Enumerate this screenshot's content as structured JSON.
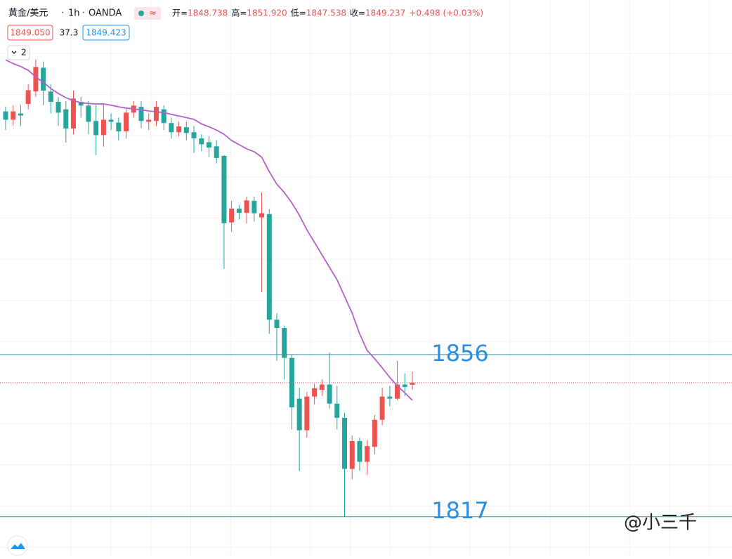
{
  "chart_data": {
    "type": "candlestick",
    "symbol": "黄金/美元",
    "interval": "1h",
    "exchange": "OANDA",
    "legend_values": [
      {
        "label": "开=",
        "value": "1848.738"
      },
      {
        "label": "高=",
        "value": "1851.920"
      },
      {
        "label": "低=",
        "value": "1847.538"
      },
      {
        "label": "收=",
        "value": "1849.237"
      }
    ],
    "change": "+0.498 (+0.03%)",
    "bid": "1849.050",
    "spread": "37.3",
    "ask": "1849.423",
    "indicator_count": "2",
    "watermark": "@小三千",
    "up_color": "#ef5350",
    "down_color": "#26a69a",
    "ylim": [
      1807.5,
      1941.3
    ],
    "grid": true,
    "open": [
      1914.5,
      1912.5,
      1914,
      1916.3,
      1919.3,
      1925,
      1919.3,
      1916.8,
      1915,
      1910.4,
      1916.8,
      1915.9,
      1912.2,
      1908.8,
      1912.5,
      1911.8,
      1909.7,
      1914.2,
      1915.6,
      1912,
      1912.2,
      1915,
      1911.7,
      1909.5,
      1910.7,
      1909.5,
      1908,
      1907.1,
      1906.1,
      1903.8,
      1887.8,
      1891.1,
      1890.1,
      1893,
      1889,
      1889.8,
      1864.4,
      1862.4,
      1855.2,
      1845.4,
      1837.8,
      1845.9,
      1847.5,
      1848.8,
      1844.2,
      1840.8,
      1828.5,
      1835.2,
      1830.2,
      1833.8,
      1840.3,
      1845.9,
      1845.4,
      1848.8,
      1848.738
    ],
    "high": [
      1915.7,
      1916,
      1916,
      1921,
      1927,
      1926.5,
      1921,
      1918,
      1917,
      1919.5,
      1918,
      1917,
      1916,
      1916,
      1914,
      1913,
      1915.5,
      1917,
      1917,
      1914,
      1917,
      1916,
      1913,
      1912,
      1912,
      1911,
      1909,
      1908.5,
      1907.6,
      1904,
      1893,
      1892,
      1894,
      1894,
      1895,
      1891,
      1866,
      1863,
      1856,
      1848,
      1847,
      1849,
      1850,
      1856.5,
      1848.5,
      1842,
      1836.5,
      1836,
      1835.5,
      1841.5,
      1848,
      1848.5,
      1854.5,
      1851.5,
      1851.92
    ],
    "low": [
      1910,
      1911,
      1911,
      1915,
      1918,
      1916,
      1914,
      1911,
      1907,
      1909,
      1913,
      1909,
      1904,
      1906,
      1910,
      1907.5,
      1908,
      1913,
      1910.5,
      1910,
      1911,
      1910,
      1908,
      1908.5,
      1907.5,
      1904.5,
      1905,
      1903.5,
      1902,
      1876.6,
      1885.5,
      1888.5,
      1887.5,
      1888,
      1871,
      1861,
      1854.5,
      1850,
      1838,
      1828,
      1836,
      1844,
      1846,
      1843,
      1838,
      1817,
      1826,
      1828,
      1827,
      1832,
      1839,
      1843.5,
      1845,
      1846,
      1847.538
    ],
    "close": [
      1912.5,
      1914.5,
      1913.5,
      1919.6,
      1925.2,
      1919.5,
      1916.8,
      1914.2,
      1910.4,
      1917.6,
      1915.9,
      1912,
      1908.8,
      1912.5,
      1912,
      1909.7,
      1914.2,
      1915.9,
      1912.2,
      1912.5,
      1915.6,
      1911.7,
      1909.5,
      1910.9,
      1909.3,
      1908,
      1906.6,
      1905.8,
      1903.3,
      1887.6,
      1891.1,
      1890.1,
      1893.1,
      1890,
      1890,
      1864.4,
      1862.4,
      1855.2,
      1843.3,
      1837.8,
      1845.9,
      1847.9,
      1848.8,
      1844.2,
      1840.8,
      1828.5,
      1835.2,
      1830.2,
      1834,
      1840.3,
      1845.9,
      1845.4,
      1848.8,
      1848.2,
      1849.237
    ],
    "ma": {
      "color": "#b45fcc",
      "values": [
        1926.9,
        1926,
        1925.3,
        1924.4,
        1922.8,
        1921.5,
        1920,
        1918.8,
        1917.8,
        1917.1,
        1916.6,
        1916.4,
        1916.3,
        1916.3,
        1916,
        1915.6,
        1915.3,
        1915.1,
        1914.9,
        1914.6,
        1914.4,
        1914.2,
        1913.8,
        1913.4,
        1913,
        1912.6,
        1911.5,
        1910.8,
        1910,
        1909,
        1907.5,
        1906.5,
        1905.5,
        1904.8,
        1903.5,
        1900,
        1897,
        1895,
        1892.5,
        1889.5,
        1886,
        1883,
        1880,
        1877,
        1874,
        1870,
        1866,
        1861,
        1857,
        1855,
        1852.8,
        1850.5,
        1848.5,
        1846.8,
        1845
      ]
    },
    "levels": [
      1856,
      1817
    ],
    "level_color": "#3d8fb0",
    "level_label_color": "#2a8ee0"
  }
}
